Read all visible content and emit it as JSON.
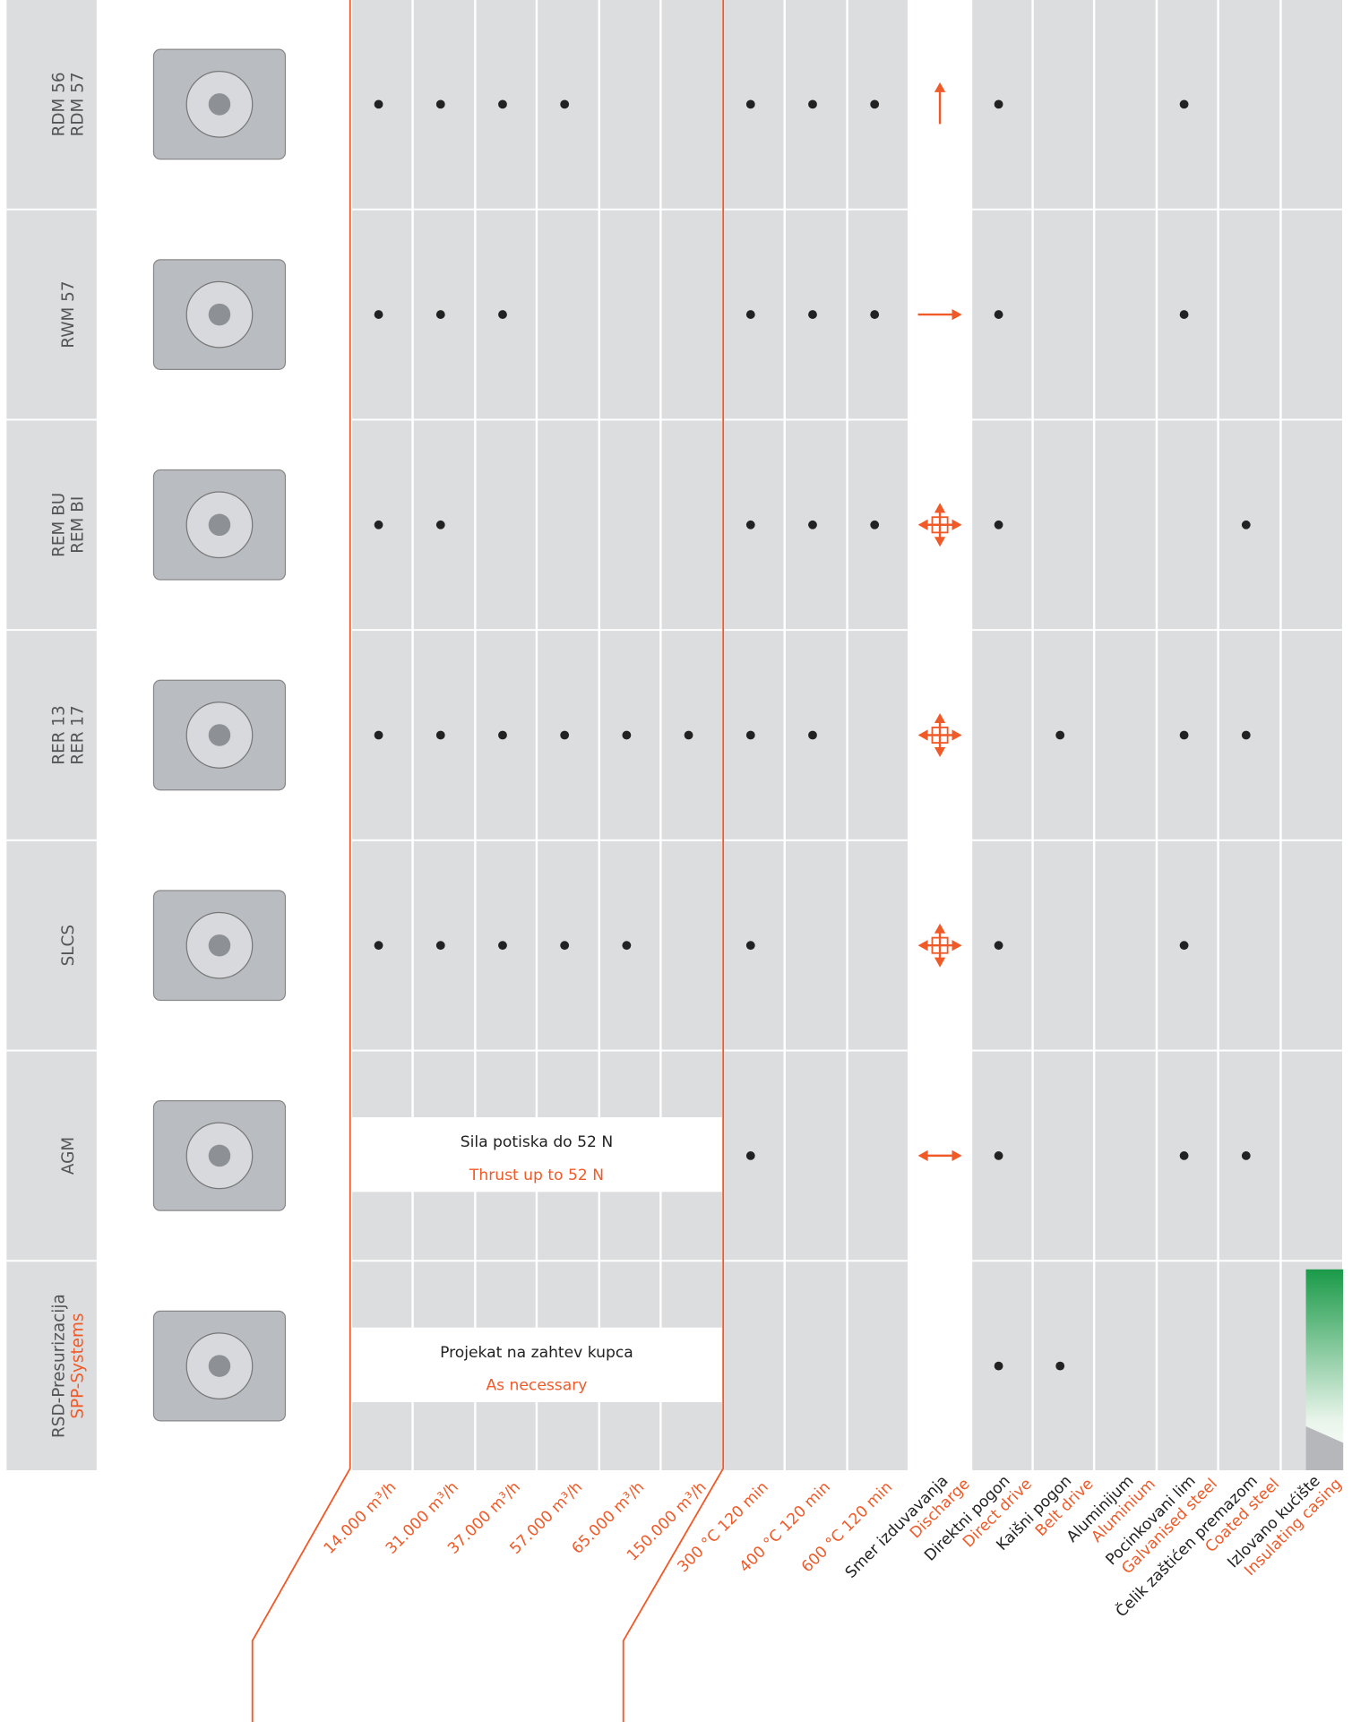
{
  "columns": [
    {
      "en": "14.000 m³/h"
    },
    {
      "en": "31.000 m³/h"
    },
    {
      "en": "37.000 m³/h"
    },
    {
      "en": "57.000 m³/h"
    },
    {
      "en": "65.000 m³/h"
    },
    {
      "en": "150.000 m³/h"
    },
    {
      "en": "300 °C 120 min"
    },
    {
      "en": "400 °C 120 min"
    },
    {
      "en": "600 °C 120 min"
    },
    {
      "sr": "Smer izduvavanja",
      "en": "Discharge"
    },
    {
      "sr": "Direktni pogon",
      "en": "Direct drive"
    },
    {
      "sr": "Kaišni pogon",
      "en": "Belt drive"
    },
    {
      "sr": "Aluminijum",
      "en": "Aluminium"
    },
    {
      "sr": "Pocinkovani lim",
      "en": "Galvanised steel"
    },
    {
      "sr": "Čelik zaštićen premazom",
      "en": "Coated steel"
    },
    {
      "sr": "Izlovano kućište",
      "en": "Insulating casing"
    }
  ],
  "rows": [
    {
      "name": [
        "RDM 56",
        "RDM 57"
      ],
      "cells": [
        true,
        true,
        true,
        true,
        false,
        false,
        true,
        true,
        true,
        "up",
        true,
        false,
        false,
        true,
        false,
        false
      ]
    },
    {
      "name": [
        "RWM 57"
      ],
      "cells": [
        true,
        true,
        true,
        false,
        false,
        false,
        true,
        true,
        true,
        "right",
        true,
        false,
        false,
        true,
        false,
        false
      ]
    },
    {
      "name": [
        "REM BU",
        "REM BI"
      ],
      "cells": [
        true,
        true,
        false,
        false,
        false,
        false,
        true,
        true,
        true,
        "all",
        true,
        false,
        false,
        false,
        true,
        false
      ]
    },
    {
      "name": [
        "RER 13",
        "RER 17"
      ],
      "cells": [
        true,
        true,
        true,
        true,
        true,
        true,
        true,
        true,
        false,
        "all",
        false,
        true,
        false,
        true,
        true,
        false
      ]
    },
    {
      "name": [
        "SLCS"
      ],
      "cells": [
        true,
        true,
        true,
        true,
        true,
        false,
        true,
        false,
        false,
        "all",
        true,
        false,
        false,
        true,
        false,
        false
      ]
    },
    {
      "name": [
        "AGM"
      ],
      "note": {
        "sr": "Sila potiska do 52 N",
        "en": "Thrust up to 52 N"
      },
      "cells": [
        false,
        false,
        false,
        false,
        false,
        false,
        true,
        false,
        false,
        "both",
        true,
        false,
        false,
        true,
        true,
        false
      ]
    },
    {
      "name": [
        "RSD-Presurizacija"
      ],
      "name_en": "SPP-Systems",
      "note": {
        "sr": "Projekat na zahtev kupca",
        "en": "As necessary"
      },
      "cells": [
        false,
        false,
        false,
        false,
        false,
        false,
        false,
        false,
        false,
        null,
        true,
        true,
        false,
        false,
        false,
        false
      ]
    }
  ]
}
